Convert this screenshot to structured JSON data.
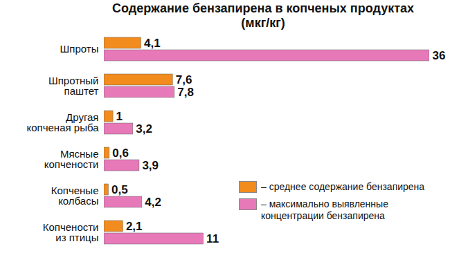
{
  "chart_data": {
    "type": "bar",
    "title": "Содержание бензапирена в копченых продуктах (мкг/кг)",
    "orientation": "horizontal",
    "categories": [
      "Шпроты",
      "Шпротный\nпаштет",
      "Другая\nкопченая рыба",
      "Мясные\nкопчености",
      "Копченые\nколбасы",
      "Копчености\nиз птицы"
    ],
    "series": [
      {
        "name": "– среднее содержание бензапирена",
        "color": "#f28c1e",
        "values": [
          4.1,
          7.6,
          1,
          0.6,
          0.5,
          2.1
        ],
        "value_labels": [
          "4,1",
          "7,6",
          "1",
          "0,6",
          "0,5",
          "2,1"
        ]
      },
      {
        "name": "– максимально выявленные концентрации бензапирена",
        "color": "#e879b9",
        "values": [
          36,
          7.8,
          3.2,
          3.9,
          4.2,
          11
        ],
        "value_labels": [
          "36",
          "7,8",
          "3,2",
          "3,9",
          "4,2",
          "11"
        ]
      }
    ],
    "xlim": [
      0,
      36
    ],
    "data_labels": true,
    "tick_labels": "y",
    "legend": "bottom-right"
  }
}
